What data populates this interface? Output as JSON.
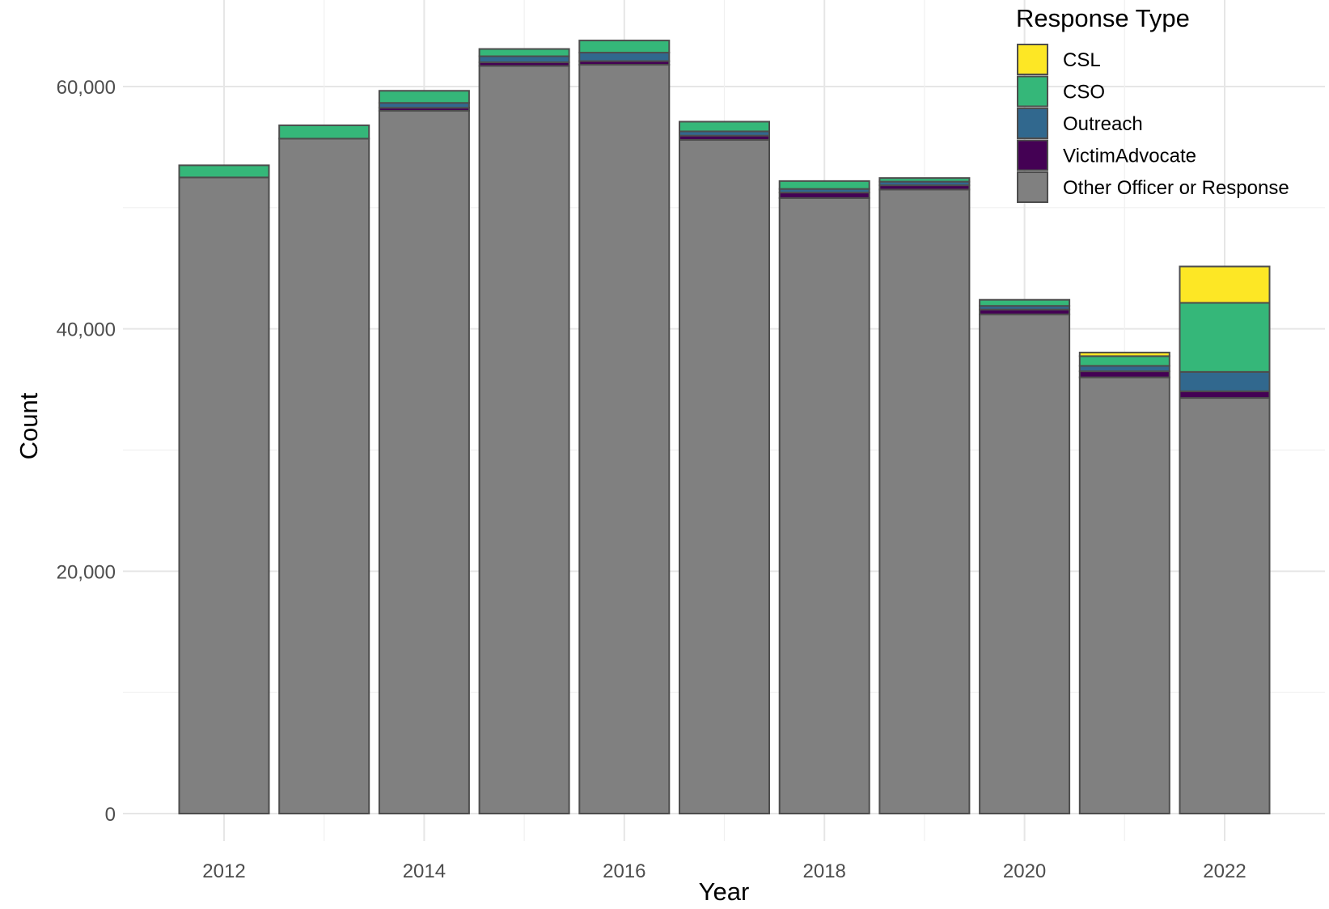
{
  "chart_data": {
    "type": "bar",
    "stacked": true,
    "title": "",
    "xlabel": "Year",
    "ylabel": "Count",
    "categories": [
      "2012",
      "2013",
      "2014",
      "2015",
      "2016",
      "2017",
      "2018",
      "2019",
      "2020",
      "2021",
      "2022"
    ],
    "x_tick_labels": [
      "2012",
      "2014",
      "2016",
      "2018",
      "2020",
      "2022"
    ],
    "y_tick_labels": [
      "0",
      "20,000",
      "40,000",
      "60,000"
    ],
    "y_ticks": [
      0,
      20000,
      40000,
      60000
    ],
    "ylim": [
      0,
      65000
    ],
    "grid": true,
    "legend": {
      "title": "Response Type",
      "position": "top-right",
      "order": [
        "CSL",
        "CSO",
        "Outreach",
        "VictimAdvocate",
        "Other Officer or Response"
      ]
    },
    "series": [
      {
        "name": "Other Officer or Response",
        "color": "#808080",
        "values": [
          52500,
          55700,
          58000,
          61700,
          61800,
          55600,
          50800,
          51500,
          41200,
          36000,
          34300
        ]
      },
      {
        "name": "VictimAdvocate",
        "color": "#440154",
        "values": [
          0,
          0,
          250,
          300,
          300,
          350,
          450,
          350,
          400,
          500,
          550
        ]
      },
      {
        "name": "Outreach",
        "color": "#31688e",
        "values": [
          0,
          0,
          400,
          500,
          700,
          350,
          300,
          300,
          300,
          450,
          1600
        ]
      },
      {
        "name": "CSO",
        "color": "#35b779",
        "values": [
          1000,
          1100,
          1000,
          600,
          1000,
          800,
          650,
          300,
          500,
          800,
          5700
        ]
      },
      {
        "name": "CSL",
        "color": "#fde725",
        "values": [
          0,
          0,
          0,
          0,
          0,
          0,
          0,
          0,
          0,
          300,
          3000
        ]
      }
    ]
  }
}
